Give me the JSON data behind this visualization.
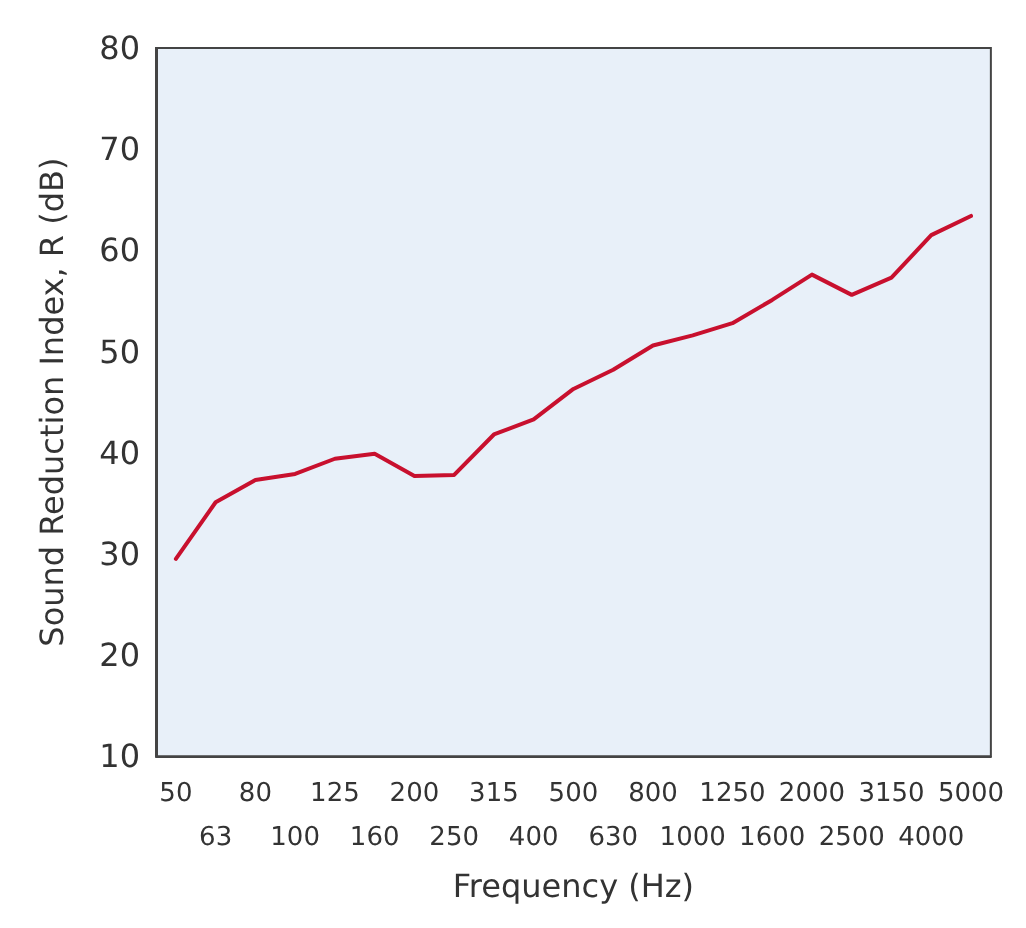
{
  "chart_data": {
    "type": "line",
    "xlabel": "Frequency (Hz)",
    "ylabel": "Sound Reduction Index, R (dB)",
    "categories": [
      "50",
      "63",
      "80",
      "100",
      "125",
      "160",
      "200",
      "250",
      "315",
      "400",
      "500",
      "630",
      "800",
      "1000",
      "1250",
      "1600",
      "2000",
      "2500",
      "3150",
      "4000",
      "5000"
    ],
    "series": [
      {
        "color": "#c8102e",
        "values": [
          29.5,
          35.1,
          37.3,
          37.9,
          39.4,
          39.9,
          37.7,
          37.8,
          41.8,
          43.3,
          46.3,
          48.2,
          50.6,
          51.6,
          52.8,
          55.1,
          57.6,
          55.6,
          57.3,
          61.5,
          63.4
        ]
      }
    ],
    "ylim": [
      10,
      80
    ],
    "yticks": [
      10,
      20,
      30,
      40,
      50,
      60,
      70,
      80
    ],
    "grid": false,
    "marker": "none",
    "line_style": "solid"
  }
}
